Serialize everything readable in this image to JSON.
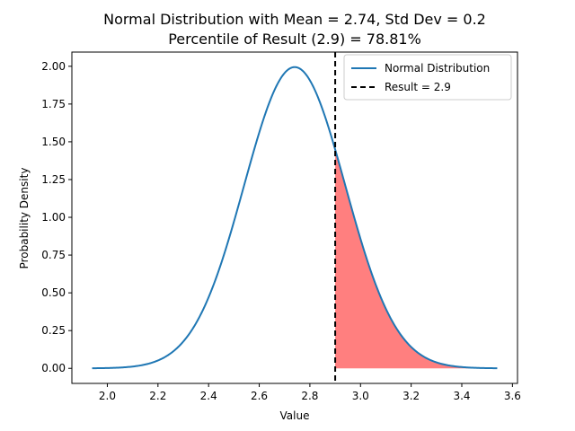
{
  "chart_data": {
    "type": "line",
    "title_line1": "Normal Distribution with Mean = 2.74, Std Dev = 0.2",
    "title_line2": "Percentile of Result (2.9) = 78.81%",
    "xlabel": "Value",
    "ylabel": "Probability Density",
    "mean": 2.74,
    "std_dev": 0.2,
    "result": 2.9,
    "percentile": "78.81%",
    "x_range": [
      1.94,
      3.54
    ],
    "xlim": [
      1.86,
      3.62
    ],
    "ylim": [
      -0.0997,
      2.094
    ],
    "x_ticks": [
      "2.0",
      "2.2",
      "2.4",
      "2.6",
      "2.8",
      "3.0",
      "3.2",
      "3.4",
      "3.6"
    ],
    "y_ticks": [
      "0.00",
      "0.25",
      "0.50",
      "0.75",
      "1.00",
      "1.25",
      "1.50",
      "1.75",
      "2.00"
    ],
    "grid": false,
    "legend_position": "top-right",
    "series": [
      {
        "name": "Normal Distribution",
        "color": "#1f77b4",
        "style": "solid"
      },
      {
        "name": "Result = 2.9",
        "color": "#000000",
        "style": "dashed"
      }
    ],
    "shaded_region": {
      "from": 2.9,
      "to": 3.54,
      "color": "#ff0000",
      "opacity": 0.5
    }
  }
}
